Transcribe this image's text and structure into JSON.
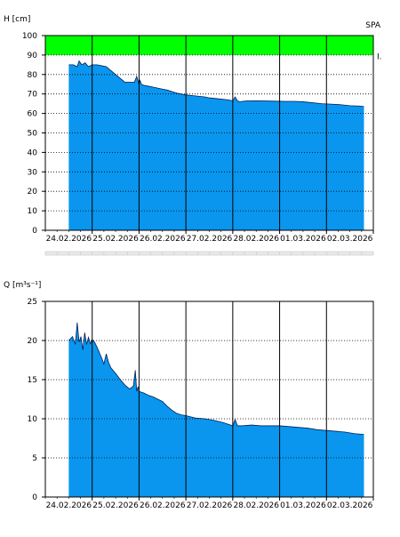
{
  "chart_data": [
    {
      "type": "area",
      "ylabel": "H [cm]",
      "corner_label": "SPA",
      "band_label": "I.",
      "ylim": [
        0,
        100
      ],
      "yticks": [
        0,
        10,
        20,
        30,
        40,
        50,
        60,
        70,
        80,
        90,
        100
      ],
      "xlim": [
        "23.02.2026 12:00",
        "03.03.2026 12:00"
      ],
      "xticks": [
        "24.02.2026",
        "25.02.2026",
        "26.02.2026",
        "27.02.2026",
        "28.02.2026",
        "01.03.2026",
        "02.03.2026"
      ],
      "threshold_band": {
        "label": "I.",
        "from": 90,
        "to": 100,
        "color": "#00ff00"
      },
      "fill_color": "#0a96ee",
      "grid": "dotted horizontal, solid vertical at midnight",
      "x": [
        0,
        0.1,
        0.18,
        0.22,
        0.28,
        0.35,
        0.42,
        0.5,
        0.6,
        0.7,
        0.8,
        0.9,
        1.0,
        1.1,
        1.2,
        1.3,
        1.4,
        1.45,
        1.5,
        1.52,
        1.55,
        1.6,
        1.7,
        1.8,
        1.9,
        2.0,
        2.1,
        2.3,
        2.5,
        2.7,
        2.9,
        3.0,
        3.2,
        3.4,
        3.5,
        3.55,
        3.6,
        3.65,
        3.7,
        3.8,
        4.0,
        4.2,
        4.4,
        4.6,
        4.8,
        5.0,
        5.2,
        5.4,
        5.6,
        5.8,
        6.0,
        6.2,
        6.3
      ],
      "values": [
        85,
        85,
        84,
        87,
        85,
        86,
        84,
        85,
        85,
        84.5,
        84,
        82,
        80,
        78,
        76,
        76,
        76,
        79,
        75,
        77,
        75,
        74.5,
        74,
        73.5,
        73,
        72.5,
        72,
        70.5,
        69.5,
        69,
        68.5,
        68,
        67.5,
        67,
        66.5,
        68.5,
        66.5,
        66,
        66.2,
        66.4,
        66.5,
        66.4,
        66.3,
        66.2,
        66.2,
        66,
        65.5,
        65,
        64.8,
        64.5,
        64,
        63.8,
        63.5
      ]
    },
    {
      "type": "area",
      "ylabel": "Q [m³s⁻¹]",
      "ylim": [
        0,
        25
      ],
      "yticks": [
        0,
        5,
        10,
        15,
        20,
        25
      ],
      "xlim": [
        "23.02.2026 12:00",
        "03.03.2026 12:00"
      ],
      "xticks": [
        "24.02.2026",
        "25.02.2026",
        "26.02.2026",
        "27.02.2026",
        "28.02.2026",
        "01.03.2026",
        "02.03.2026"
      ],
      "fill_color": "#0a96ee",
      "grid": "dotted horizontal, solid vertical at midnight",
      "x": [
        0,
        0.08,
        0.14,
        0.18,
        0.22,
        0.26,
        0.3,
        0.34,
        0.38,
        0.42,
        0.46,
        0.5,
        0.55,
        0.6,
        0.65,
        0.7,
        0.75,
        0.8,
        0.85,
        0.9,
        1.0,
        1.1,
        1.2,
        1.3,
        1.38,
        1.42,
        1.45,
        1.48,
        1.5,
        1.6,
        1.7,
        1.8,
        1.9,
        2.0,
        2.1,
        2.2,
        2.3,
        2.4,
        2.5,
        2.7,
        2.9,
        3.1,
        3.3,
        3.5,
        3.55,
        3.6,
        3.7,
        3.9,
        4.1,
        4.3,
        4.5,
        4.7,
        4.9,
        5.1,
        5.3,
        5.5,
        5.7,
        5.9,
        6.1,
        6.3
      ],
      "values": [
        20,
        20.5,
        19.5,
        22.3,
        19.8,
        20.5,
        18.8,
        21,
        19.5,
        20.4,
        19.6,
        20.1,
        19.8,
        19.2,
        18.5,
        17.8,
        17,
        18.3,
        17.2,
        16.5,
        15.8,
        15,
        14.3,
        13.8,
        14.2,
        16.2,
        13.5,
        14.1,
        13.5,
        13.3,
        13,
        12.8,
        12.5,
        12.2,
        11.6,
        11.1,
        10.7,
        10.5,
        10.4,
        10.1,
        10.0,
        9.8,
        9.5,
        9.1,
        9.9,
        9.1,
        9.1,
        9.2,
        9.1,
        9.1,
        9.1,
        9.0,
        8.9,
        8.8,
        8.6,
        8.5,
        8.4,
        8.3,
        8.1,
        8.0
      ]
    }
  ]
}
